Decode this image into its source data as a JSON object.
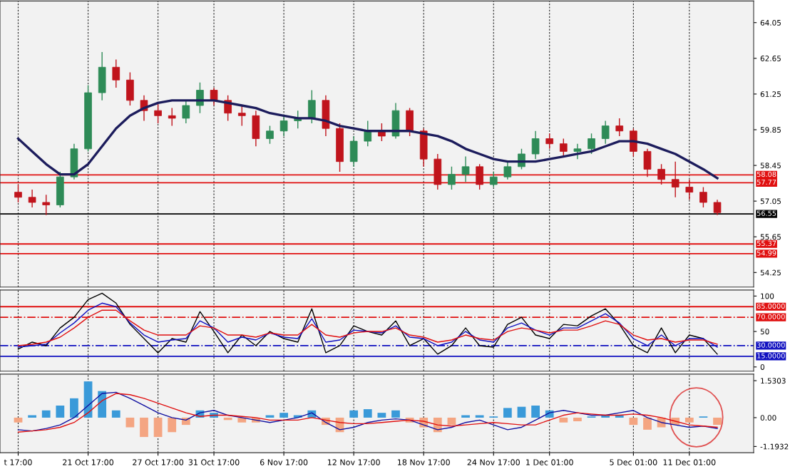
{
  "chart_data": [
    {
      "type": "candlestick",
      "ohlc": [
        [
          57.4,
          57.7,
          57.0,
          57.2
        ],
        [
          57.2,
          57.5,
          56.8,
          57.0
        ],
        [
          57.0,
          57.3,
          56.5,
          56.9
        ],
        [
          56.9,
          58.2,
          56.8,
          58.0
        ],
        [
          58.0,
          59.3,
          57.9,
          59.1
        ],
        [
          59.1,
          61.6,
          59.0,
          61.3
        ],
        [
          61.3,
          62.9,
          61.0,
          62.3
        ],
        [
          62.3,
          62.6,
          61.5,
          61.8
        ],
        [
          61.8,
          62.1,
          60.8,
          61.0
        ],
        [
          61.0,
          61.2,
          60.2,
          60.6
        ],
        [
          60.6,
          60.9,
          60.1,
          60.4
        ],
        [
          60.4,
          60.7,
          60.0,
          60.3
        ],
        [
          60.3,
          61.0,
          60.1,
          60.8
        ],
        [
          60.8,
          61.7,
          60.5,
          61.4
        ],
        [
          61.4,
          61.5,
          60.8,
          61.0
        ],
        [
          61.0,
          61.2,
          60.2,
          60.5
        ],
        [
          60.5,
          60.8,
          60.0,
          60.4
        ],
        [
          60.4,
          60.6,
          59.2,
          59.5
        ],
        [
          59.5,
          60.0,
          59.3,
          59.8
        ],
        [
          59.8,
          60.4,
          59.6,
          60.2
        ],
        [
          60.2,
          60.6,
          59.9,
          60.3
        ],
        [
          60.3,
          61.4,
          60.1,
          61.0
        ],
        [
          61.0,
          61.2,
          59.6,
          59.9
        ],
        [
          59.9,
          60.1,
          58.2,
          58.6
        ],
        [
          58.6,
          59.6,
          58.4,
          59.4
        ],
        [
          59.4,
          60.2,
          59.2,
          59.8
        ],
        [
          59.8,
          60.1,
          59.4,
          59.6
        ],
        [
          59.6,
          60.9,
          59.5,
          60.6
        ],
        [
          60.6,
          60.7,
          59.6,
          59.8
        ],
        [
          59.8,
          59.9,
          58.4,
          58.7
        ],
        [
          58.7,
          58.9,
          57.5,
          57.7
        ],
        [
          57.7,
          58.4,
          57.5,
          58.1
        ],
        [
          58.1,
          58.8,
          57.8,
          58.4
        ],
        [
          58.4,
          58.5,
          57.5,
          57.7
        ],
        [
          57.7,
          58.2,
          57.6,
          58.0
        ],
        [
          58.0,
          58.6,
          57.9,
          58.4
        ],
        [
          58.4,
          59.1,
          58.3,
          58.9
        ],
        [
          58.9,
          59.8,
          58.7,
          59.5
        ],
        [
          59.5,
          59.7,
          59.1,
          59.3
        ],
        [
          59.3,
          59.5,
          58.8,
          59.0
        ],
        [
          59.0,
          59.3,
          58.7,
          59.1
        ],
        [
          59.1,
          59.7,
          58.9,
          59.5
        ],
        [
          59.5,
          60.2,
          59.3,
          60.0
        ],
        [
          60.0,
          60.3,
          59.6,
          59.8
        ],
        [
          59.8,
          59.9,
          58.8,
          59.0
        ],
        [
          59.0,
          59.1,
          58.0,
          58.3
        ],
        [
          58.3,
          58.5,
          57.7,
          57.9
        ],
        [
          57.9,
          58.6,
          57.2,
          57.6
        ],
        [
          57.6,
          57.9,
          57.1,
          57.4
        ],
        [
          57.4,
          57.6,
          56.8,
          57.0
        ],
        [
          57.0,
          57.1,
          56.5,
          56.6
        ]
      ],
      "series": [
        {
          "type": "line",
          "color": "#1c1c5c",
          "values": [
            59.5,
            59.0,
            58.5,
            58.1,
            58.1,
            58.5,
            59.2,
            59.9,
            60.4,
            60.7,
            60.9,
            61.0,
            61.0,
            61.0,
            61.0,
            60.9,
            60.8,
            60.7,
            60.5,
            60.4,
            60.3,
            60.3,
            60.2,
            60.0,
            59.9,
            59.8,
            59.8,
            59.8,
            59.8,
            59.7,
            59.6,
            59.4,
            59.1,
            58.9,
            58.7,
            58.6,
            58.6,
            58.6,
            58.7,
            58.8,
            58.9,
            59.0,
            59.2,
            59.4,
            59.4,
            59.3,
            59.1,
            58.9,
            58.6,
            58.3,
            57.95
          ]
        }
      ],
      "ylim": [
        53.68,
        64.9
      ],
      "yticks": [
        54.25,
        55.65,
        57.05,
        58.45,
        59.85,
        61.25,
        62.65,
        64.05
      ],
      "ref_lines": [
        {
          "axis": "y",
          "value": 58.08,
          "label": "58.08",
          "color": "#e01010"
        },
        {
          "axis": "y",
          "value": 57.77,
          "label": "57.77",
          "color": "#e01010"
        },
        {
          "axis": "y",
          "value": 56.55,
          "label": "56.55",
          "color": "#000000"
        },
        {
          "axis": "y",
          "value": 55.37,
          "label": "55.37",
          "color": "#e01010"
        },
        {
          "axis": "y",
          "value": 54.99,
          "label": "54.99",
          "color": "#e01010"
        }
      ],
      "grid": "x",
      "tick_labels": "y"
    },
    {
      "type": "line",
      "series": [
        {
          "color": "#000000",
          "values": [
            25,
            35,
            30,
            55,
            70,
            95,
            104,
            90,
            60,
            40,
            20,
            40,
            35,
            78,
            50,
            20,
            45,
            30,
            50,
            40,
            35,
            82,
            20,
            30,
            58,
            50,
            45,
            65,
            30,
            40,
            18,
            30,
            55,
            30,
            28,
            60,
            70,
            45,
            40,
            60,
            58,
            72,
            82,
            60,
            30,
            20,
            55,
            20,
            45,
            40,
            18
          ]
        },
        {
          "color": "#1010c0",
          "values": [
            28,
            30,
            32,
            48,
            62,
            80,
            90,
            85,
            62,
            45,
            35,
            38,
            40,
            65,
            55,
            35,
            42,
            38,
            48,
            42,
            40,
            68,
            35,
            38,
            52,
            50,
            48,
            58,
            42,
            40,
            30,
            35,
            50,
            38,
            35,
            55,
            62,
            52,
            45,
            55,
            55,
            65,
            75,
            62,
            40,
            30,
            45,
            30,
            40,
            40,
            28
          ]
        },
        {
          "color": "#e01010",
          "values": [
            30,
            32,
            35,
            42,
            55,
            70,
            80,
            80,
            65,
            52,
            45,
            45,
            45,
            58,
            55,
            45,
            45,
            42,
            48,
            45,
            45,
            60,
            45,
            42,
            48,
            50,
            50,
            55,
            45,
            42,
            35,
            38,
            45,
            40,
            38,
            50,
            55,
            52,
            48,
            52,
            52,
            58,
            65,
            60,
            45,
            38,
            40,
            35,
            38,
            38,
            32
          ]
        }
      ],
      "ylim": [
        -6,
        108.5
      ],
      "yticks": [
        0,
        50,
        100
      ],
      "ref_lines": [
        {
          "axis": "y",
          "value": 85,
          "label": "85.0000",
          "color": "#e01010",
          "line_style": "solid"
        },
        {
          "axis": "y",
          "value": 70,
          "label": "70.0000",
          "color": "#e01010",
          "line_style": "dashed"
        },
        {
          "axis": "y",
          "value": 30,
          "label": "30.0000",
          "color": "#1010c0",
          "line_style": "dashed"
        },
        {
          "axis": "y",
          "value": 15,
          "label": "15.0000",
          "color": "#1010c0",
          "line_style": "solid"
        }
      ],
      "grid": "x",
      "tick_labels": "y"
    },
    {
      "type": "bar",
      "categories": [
        "t 17:00",
        null,
        null,
        null,
        null,
        "21 Oct 17:00",
        null,
        null,
        null,
        null,
        "27 Oct 17:00",
        null,
        null,
        null,
        "31 Oct 17:00",
        null,
        null,
        null,
        null,
        "6 Nov 17:00",
        null,
        null,
        null,
        null,
        "12 Nov 17:00",
        null,
        null,
        null,
        null,
        "18 Nov 17:00",
        null,
        null,
        null,
        null,
        "24 Nov 17:00",
        null,
        null,
        null,
        "1 Dec 01:00",
        null,
        null,
        null,
        null,
        null,
        "5 Dec 01:00",
        null,
        null,
        null,
        "11 Dec 01:00",
        null,
        null
      ],
      "series": [
        {
          "type": "bar",
          "values": [
            -0.2,
            0.1,
            0.3,
            0.5,
            0.8,
            1.5,
            1.1,
            0.3,
            -0.4,
            -0.8,
            -0.8,
            -0.6,
            -0.3,
            0.3,
            0.2,
            -0.1,
            -0.2,
            -0.2,
            0.1,
            0.2,
            0.1,
            0.3,
            -0.3,
            -0.6,
            0.3,
            0.35,
            0.2,
            0.3,
            -0.2,
            -0.4,
            -0.6,
            -0.3,
            0.1,
            0.1,
            0.05,
            0.4,
            0.45,
            0.5,
            0.3,
            -0.2,
            -0.15,
            0.05,
            0.1,
            0.1,
            -0.3,
            -0.5,
            -0.4,
            -0.3,
            -0.2,
            0.05,
            -0.3
          ],
          "colors": [
            "#f4a582",
            "#3a9ad9",
            "#3a9ad9",
            "#3a9ad9",
            "#3a9ad9",
            "#3a9ad9",
            "#3a9ad9",
            "#3a9ad9",
            "#f4a582",
            "#f4a582",
            "#f4a582",
            "#f4a582",
            "#f4a582",
            "#3a9ad9",
            "#3a9ad9",
            "#f4a582",
            "#f4a582",
            "#f4a582",
            "#3a9ad9",
            "#3a9ad9",
            "#3a9ad9",
            "#3a9ad9",
            "#f4a582",
            "#f4a582",
            "#3a9ad9",
            "#3a9ad9",
            "#3a9ad9",
            "#3a9ad9",
            "#f4a582",
            "#f4a582",
            "#f4a582",
            "#f4a582",
            "#3a9ad9",
            "#3a9ad9",
            "#3a9ad9",
            "#3a9ad9",
            "#3a9ad9",
            "#3a9ad9",
            "#3a9ad9",
            "#f4a582",
            "#f4a582",
            "#3a9ad9",
            "#3a9ad9",
            "#3a9ad9",
            "#f4a582",
            "#f4a582",
            "#f4a582",
            "#f4a582",
            "#f4a582",
            "#3a9ad9",
            "#f4a582"
          ]
        },
        {
          "type": "line",
          "color": "#1010a0",
          "values": [
            -0.5,
            -0.55,
            -0.45,
            -0.3,
            0,
            0.5,
            1.0,
            1.05,
            0.8,
            0.5,
            0.2,
            0.0,
            -0.1,
            0.2,
            0.3,
            0.1,
            0.0,
            -0.1,
            -0.2,
            -0.1,
            0.0,
            0.2,
            -0.2,
            -0.5,
            -0.4,
            -0.2,
            -0.1,
            -0.05,
            -0.1,
            -0.3,
            -0.5,
            -0.4,
            -0.2,
            -0.1,
            -0.3,
            -0.5,
            -0.4,
            -0.1,
            0.2,
            0.3,
            0.2,
            0.1,
            0.1,
            0.2,
            0.3,
            0.0,
            -0.2,
            -0.3,
            -0.4,
            -0.35,
            -0.45
          ]
        },
        {
          "type": "line",
          "color": "#e01010",
          "values": [
            -0.6,
            -0.55,
            -0.5,
            -0.4,
            -0.2,
            0.2,
            0.7,
            1.0,
            0.95,
            0.8,
            0.6,
            0.4,
            0.2,
            0.05,
            0.1,
            0.1,
            0.05,
            0.0,
            -0.1,
            -0.1,
            -0.1,
            0.0,
            -0.1,
            -0.2,
            -0.25,
            -0.25,
            -0.2,
            -0.15,
            -0.1,
            -0.15,
            -0.3,
            -0.35,
            -0.3,
            -0.25,
            -0.2,
            -0.25,
            -0.3,
            -0.3,
            -0.1,
            0.1,
            0.2,
            0.15,
            0.1,
            0.1,
            0.15,
            0.1,
            0.0,
            -0.15,
            -0.3,
            -0.35,
            -0.4
          ]
        }
      ],
      "ylim": [
        -1.45,
        1.8
      ],
      "yticks": [
        {
          "value": -1.1932,
          "label": "-1.1932"
        },
        {
          "value": 0,
          "label": "0.00"
        },
        1.5303
      ],
      "grid": "x"
    }
  ]
}
